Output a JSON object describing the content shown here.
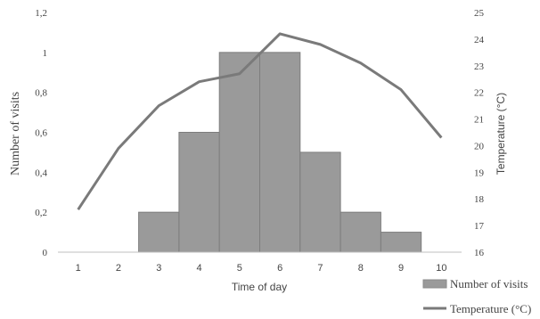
{
  "chart_data": {
    "type": "bar",
    "xlabel": "Time of day",
    "categories": [
      "1",
      "2",
      "3",
      "4",
      "5",
      "6",
      "7",
      "8",
      "9",
      "10"
    ],
    "series": [
      {
        "name": "Number of visits",
        "type": "bar",
        "axis": "left",
        "values": [
          0,
          0,
          0.2,
          0.6,
          1,
          1,
          0.5,
          0.2,
          0.1,
          0
        ],
        "color": "#9a9a9a"
      },
      {
        "name": "Temperature (°C)",
        "type": "line",
        "axis": "right",
        "values": [
          17.6,
          19.9,
          21.5,
          22.4,
          22.7,
          24.2,
          23.8,
          23.1,
          22.1,
          20.3
        ],
        "color": "#7a7a7a"
      }
    ],
    "y_left": {
      "label": "Number of visits",
      "range": [
        0,
        1.2
      ],
      "ticks": [
        "0",
        "0,2",
        "0,4",
        "0,6",
        "0,8",
        "1",
        "1,2"
      ]
    },
    "y_right": {
      "label": "Temperature (°C)",
      "range": [
        16,
        25
      ],
      "ticks": [
        "16",
        "17",
        "18",
        "19",
        "20",
        "21",
        "22",
        "23",
        "24",
        "25"
      ]
    },
    "grid": false,
    "legend": "bottom-right"
  }
}
